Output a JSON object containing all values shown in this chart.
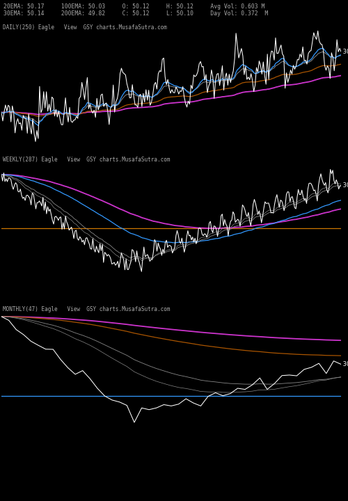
{
  "background_color": "#000000",
  "text_color": "#aaaaaa",
  "info_line1": "20EMA: 50.17     100EMA: 50.03     O: 50.12     H: 50.12     Avg Vol: 0.603 M",
  "info_line2": "30EMA: 50.14     200EMA: 49.82     C: 50.12     L: 50.10     Day Vol: 0.372  M",
  "title_daily": "DAILY(250) Eagle   View  GSY charts.MusafaSutra.com",
  "title_weekly": "WEEKLY(287) Eagle   View  GSY charts.MusafaSutra.com",
  "title_monthly": "MONTHLY(47) Eagle   View  GSY charts.MusafaSutra.com",
  "white": "#ffffff",
  "blue": "#3399ff",
  "brown": "#aa5500",
  "magenta": "#cc33cc",
  "gray": "#888888",
  "orange": "#cc7700"
}
